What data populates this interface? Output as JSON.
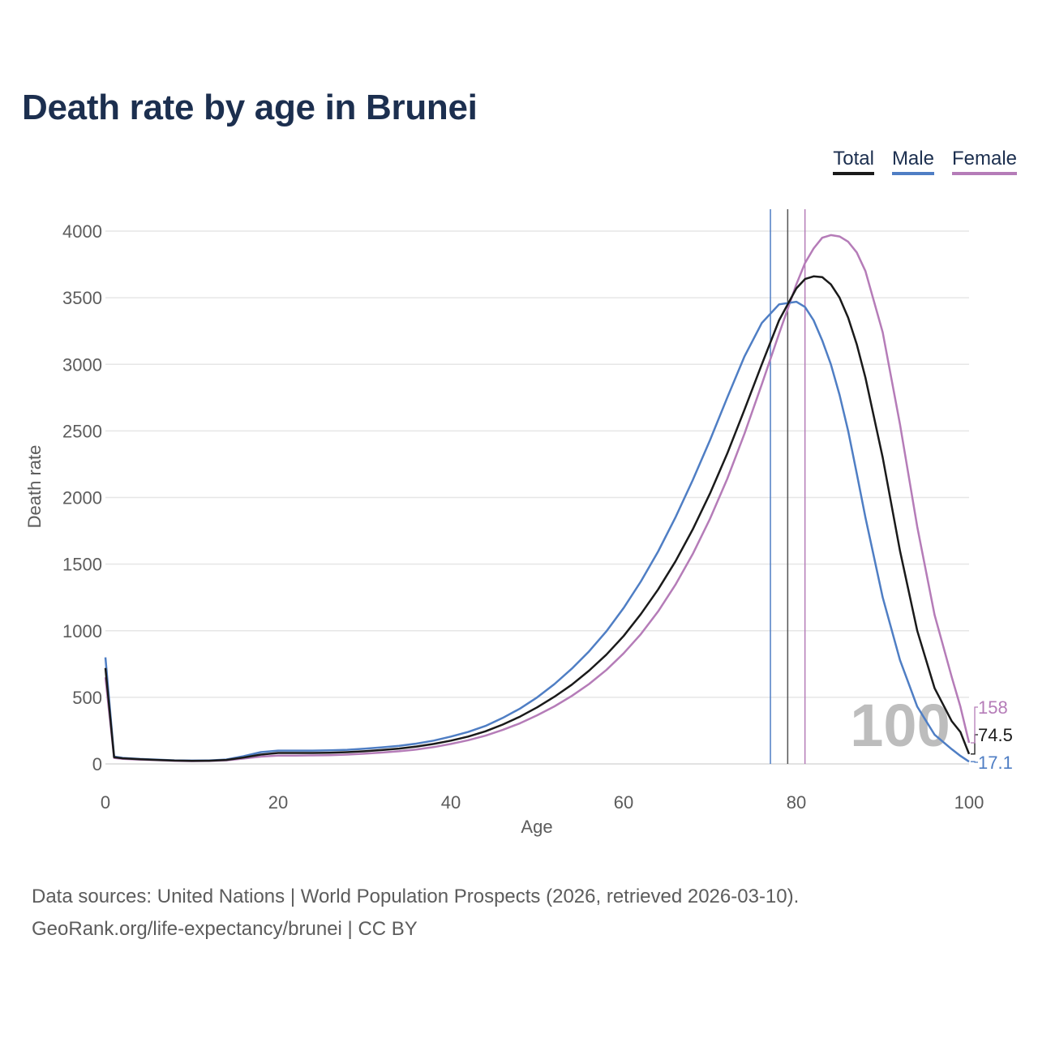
{
  "title": "Death rate by age in Brunei",
  "legend": [
    {
      "label": "Total",
      "color": "#1a1a1a"
    },
    {
      "label": "Male",
      "color": "#4f7ec4"
    },
    {
      "label": "Female",
      "color": "#b57cb8"
    }
  ],
  "footer": {
    "line1": "Data sources: United Nations | World Population Prospects (2026, retrieved 2026-03-10).",
    "line2": "GeoRank.org/life-expectancy/brunei | CC BY"
  },
  "chart_data": {
    "type": "line",
    "title": "Death rate by age in Brunei",
    "xlabel": "Age",
    "ylabel": "Death rate",
    "xlim": [
      0,
      100
    ],
    "ylim": [
      0,
      4000
    ],
    "xticks": [
      0,
      20,
      40,
      60,
      80,
      100
    ],
    "yticks": [
      0,
      500,
      1000,
      1500,
      2000,
      2500,
      3000,
      3500,
      4000
    ],
    "grid": true,
    "watermark": "100",
    "x": [
      0,
      1,
      2,
      4,
      6,
      8,
      10,
      12,
      14,
      16,
      18,
      20,
      22,
      24,
      26,
      28,
      30,
      32,
      34,
      36,
      38,
      40,
      42,
      44,
      46,
      48,
      50,
      52,
      54,
      56,
      58,
      60,
      62,
      64,
      66,
      68,
      70,
      72,
      74,
      76,
      78,
      80,
      81,
      82,
      83,
      84,
      85,
      86,
      87,
      88,
      90,
      92,
      94,
      96,
      98,
      99,
      100
    ],
    "series": [
      {
        "name": "Total",
        "color": "#1a1a1a",
        "end_label": "74.5",
        "values": [
          720,
          50,
          42,
          35,
          30,
          25,
          23,
          24,
          30,
          48,
          70,
          82,
          82,
          82,
          84,
          88,
          95,
          104,
          115,
          130,
          150,
          175,
          205,
          245,
          295,
          355,
          425,
          505,
          595,
          700,
          820,
          960,
          1125,
          1310,
          1520,
          1760,
          2030,
          2330,
          2660,
          3000,
          3330,
          3570,
          3640,
          3660,
          3655,
          3600,
          3500,
          3350,
          3150,
          2900,
          2300,
          1600,
          1000,
          570,
          320,
          240,
          74.5
        ]
      },
      {
        "name": "Male",
        "color": "#4f7ec4",
        "end_label": "17.1",
        "values": [
          800,
          55,
          45,
          37,
          32,
          27,
          25,
          26,
          33,
          58,
          88,
          100,
          100,
          100,
          102,
          106,
          114,
          124,
          136,
          152,
          175,
          205,
          240,
          285,
          345,
          415,
          500,
          600,
          715,
          845,
          995,
          1170,
          1370,
          1595,
          1850,
          2130,
          2430,
          2750,
          3060,
          3310,
          3450,
          3470,
          3430,
          3330,
          3180,
          3000,
          2770,
          2500,
          2180,
          1850,
          1250,
          780,
          430,
          220,
          110,
          60,
          17.1
        ]
      },
      {
        "name": "Female",
        "color": "#b57cb8",
        "end_label": "158",
        "values": [
          650,
          45,
          38,
          32,
          28,
          23,
          21,
          22,
          27,
          40,
          55,
          62,
          63,
          64,
          66,
          70,
          77,
          85,
          95,
          108,
          126,
          150,
          178,
          212,
          255,
          305,
          365,
          432,
          510,
          600,
          705,
          830,
          975,
          1145,
          1345,
          1575,
          1840,
          2140,
          2480,
          2850,
          3230,
          3600,
          3760,
          3870,
          3950,
          3970,
          3960,
          3920,
          3840,
          3700,
          3240,
          2550,
          1780,
          1120,
          650,
          430,
          158
        ]
      }
    ],
    "reference_lines": [
      {
        "series": "Male",
        "age": 77,
        "color": "#4f7ec4"
      },
      {
        "series": "Total",
        "age": 79,
        "color": "#555555"
      },
      {
        "series": "Female",
        "age": 81,
        "color": "#b57cb8"
      }
    ]
  }
}
